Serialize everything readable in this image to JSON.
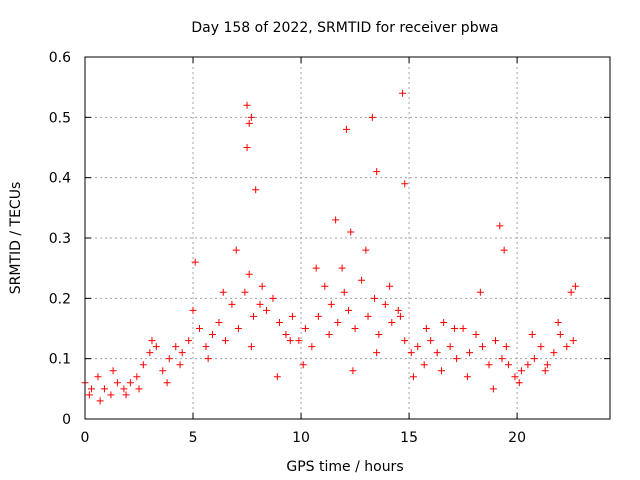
{
  "chart_data": {
    "type": "scatter",
    "title": "Day 158 of 2022, SRMTID for receiver pbwa",
    "xlabel": "GPS time / hours",
    "ylabel": "SRMTID / TECUs",
    "xlim": [
      0,
      24.3
    ],
    "ylim": [
      0,
      0.6
    ],
    "xticks": [
      0,
      5,
      10,
      15,
      20
    ],
    "xtick_labels": [
      "0",
      "5",
      "10",
      "15",
      "20"
    ],
    "yticks": [
      0,
      0.1,
      0.2,
      0.3,
      0.4,
      0.5,
      0.6
    ],
    "ytick_labels": [
      "0",
      "0.1",
      "0.2",
      "0.3",
      "0.4",
      "0.5",
      "0.6"
    ],
    "grid": true,
    "marker": "+",
    "color": "#ff0000",
    "series": [
      {
        "name": "pbwa",
        "x": [
          0.0,
          0.3,
          0.6,
          0.9,
          1.2,
          1.5,
          1.8,
          2.1,
          2.4,
          2.7,
          3.0,
          3.3,
          3.6,
          3.9,
          4.2,
          4.5,
          4.8,
          5.0,
          5.3,
          5.6,
          5.9,
          6.2,
          6.5,
          6.8,
          7.1,
          7.4,
          7.6,
          7.8,
          8.1,
          8.4,
          8.7,
          9.0,
          9.3,
          9.6,
          9.9,
          10.2,
          10.5,
          10.8,
          11.1,
          11.4,
          11.7,
          12.0,
          12.2,
          12.5,
          12.8,
          13.1,
          13.4,
          13.6,
          13.9,
          14.2,
          14.5,
          14.8,
          15.1,
          15.4,
          15.7,
          16.0,
          16.3,
          16.6,
          16.9,
          17.2,
          17.5,
          17.8,
          18.1,
          18.4,
          18.7,
          19.0,
          19.3,
          19.6,
          19.9,
          20.2,
          20.5,
          20.8,
          21.1,
          21.4,
          21.7,
          22.0,
          22.3,
          22.6,
          0.2,
          0.7,
          1.3,
          1.9,
          2.5,
          3.1,
          3.8,
          4.4,
          5.1,
          5.7,
          6.4,
          7.0,
          7.5,
          7.7,
          8.2,
          8.9,
          9.5,
          10.1,
          10.7,
          11.3,
          11.9,
          12.4,
          13.0,
          13.5,
          14.1,
          14.6,
          15.2,
          15.8,
          16.5,
          17.1,
          17.7,
          18.3,
          18.9,
          19.5,
          20.1,
          20.7,
          21.3,
          21.9,
          22.5,
          7.5,
          7.6,
          7.7,
          7.9,
          11.6,
          12.1,
          12.3,
          13.3,
          13.5,
          14.7,
          14.8,
          19.2,
          19.4,
          22.7
        ],
        "y": [
          0.06,
          0.05,
          0.07,
          0.05,
          0.04,
          0.06,
          0.05,
          0.06,
          0.07,
          0.09,
          0.11,
          0.12,
          0.08,
          0.1,
          0.12,
          0.11,
          0.13,
          0.18,
          0.15,
          0.12,
          0.14,
          0.16,
          0.13,
          0.19,
          0.15,
          0.21,
          0.24,
          0.17,
          0.19,
          0.18,
          0.2,
          0.16,
          0.14,
          0.17,
          0.13,
          0.15,
          0.12,
          0.17,
          0.22,
          0.19,
          0.16,
          0.21,
          0.18,
          0.15,
          0.23,
          0.17,
          0.2,
          0.14,
          0.19,
          0.16,
          0.18,
          0.13,
          0.11,
          0.12,
          0.09,
          0.13,
          0.11,
          0.16,
          0.12,
          0.1,
          0.15,
          0.11,
          0.14,
          0.12,
          0.09,
          0.13,
          0.1,
          0.09,
          0.07,
          0.08,
          0.09,
          0.1,
          0.12,
          0.09,
          0.11,
          0.14,
          0.12,
          0.13,
          0.04,
          0.03,
          0.08,
          0.04,
          0.05,
          0.13,
          0.06,
          0.09,
          0.26,
          0.1,
          0.21,
          0.28,
          0.45,
          0.12,
          0.22,
          0.07,
          0.13,
          0.09,
          0.25,
          0.14,
          0.25,
          0.08,
          0.28,
          0.11,
          0.22,
          0.17,
          0.07,
          0.15,
          0.08,
          0.15,
          0.07,
          0.21,
          0.05,
          0.12,
          0.06,
          0.14,
          0.08,
          0.16,
          0.21,
          0.52,
          0.49,
          0.5,
          0.38,
          0.33,
          0.48,
          0.31,
          0.5,
          0.41,
          0.54,
          0.39,
          0.32,
          0.28,
          0.22
        ]
      }
    ]
  }
}
